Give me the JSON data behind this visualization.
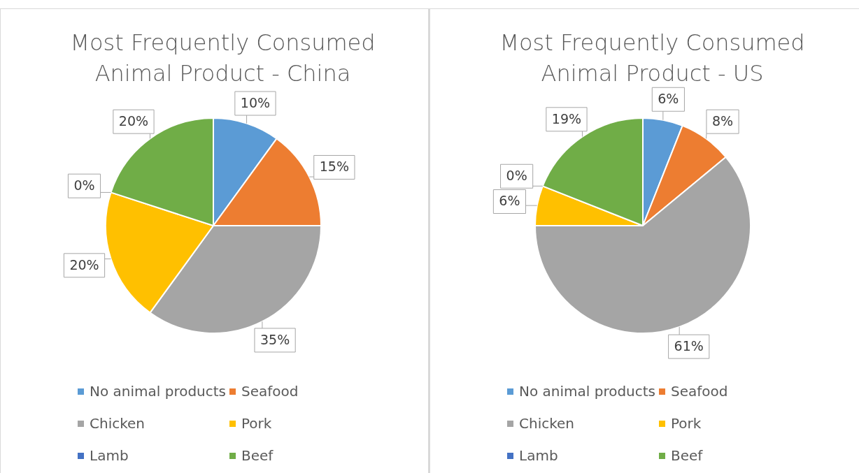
{
  "chart_data": [
    {
      "type": "pie",
      "title": "Most Frequently Consumed Animal Product - China",
      "categories": [
        "No animal products",
        "Seafood",
        "Chicken",
        "Pork",
        "Lamb",
        "Beef"
      ],
      "values": [
        10,
        15,
        35,
        20,
        0,
        20
      ],
      "colors": [
        "#5b9bd5",
        "#ed7d31",
        "#a5a5a5",
        "#ffc000",
        "#4472c4",
        "#70ad47"
      ],
      "value_labels": [
        "10%",
        "15%",
        "35%",
        "20%",
        "0%",
        "20%"
      ],
      "legend": "bottom"
    },
    {
      "type": "pie",
      "title": "Most Frequently Consumed Animal Product - US",
      "categories": [
        "No animal products",
        "Seafood",
        "Chicken",
        "Pork",
        "Lamb",
        "Beef"
      ],
      "values": [
        6,
        8,
        61,
        6,
        0,
        19
      ],
      "colors": [
        "#5b9bd5",
        "#ed7d31",
        "#a5a5a5",
        "#ffc000",
        "#4472c4",
        "#70ad47"
      ],
      "value_labels": [
        "6%",
        "8%",
        "61%",
        "6%",
        "0%",
        "19%"
      ],
      "legend": "bottom"
    }
  ]
}
